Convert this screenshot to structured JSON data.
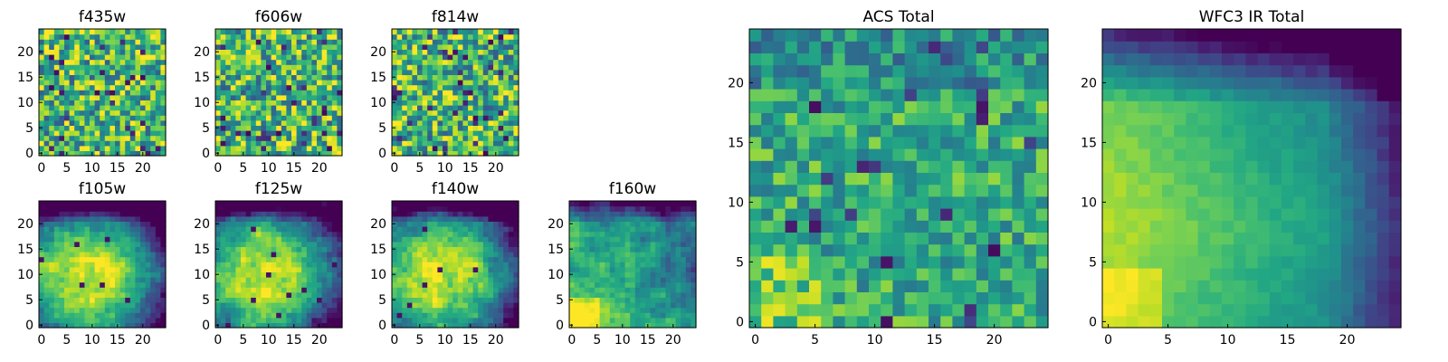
{
  "chart_data": [
    {
      "type": "heatmap",
      "title": "f435w",
      "colormap": "viridis",
      "grid_size": 25,
      "xticks": [
        "0",
        "5",
        "10",
        "15",
        "20"
      ],
      "yticks": [
        "0",
        "5",
        "10",
        "15",
        "20"
      ],
      "values_pattern": "noisy",
      "value_range": [
        0,
        1
      ]
    },
    {
      "type": "heatmap",
      "title": "f606w",
      "colormap": "viridis",
      "grid_size": 25,
      "xticks": [
        "0",
        "5",
        "10",
        "15",
        "20"
      ],
      "yticks": [
        "0",
        "5",
        "10",
        "15",
        "20"
      ],
      "values_pattern": "noisy",
      "value_range": [
        0,
        1
      ]
    },
    {
      "type": "heatmap",
      "title": "f814w",
      "colormap": "viridis",
      "grid_size": 25,
      "xticks": [
        "0",
        "5",
        "10",
        "15",
        "20"
      ],
      "yticks": [
        "0",
        "5",
        "10",
        "15",
        "20"
      ],
      "values_pattern": "noisy",
      "value_range": [
        0,
        1
      ]
    },
    {
      "type": "heatmap",
      "title": "f105w",
      "colormap": "viridis",
      "grid_size": 25,
      "xticks": [
        "0",
        "5",
        "10",
        "15",
        "20"
      ],
      "yticks": [
        "0",
        "5",
        "10",
        "15",
        "20"
      ],
      "values_pattern": "bright-center, dark top edge",
      "value_range": [
        0,
        1
      ]
    },
    {
      "type": "heatmap",
      "title": "f125w",
      "colormap": "viridis",
      "grid_size": 25,
      "xticks": [
        "0",
        "5",
        "10",
        "15",
        "20"
      ],
      "yticks": [
        "0",
        "5",
        "10",
        "15",
        "20"
      ],
      "values_pattern": "bright-center, dark top edge",
      "value_range": [
        0,
        1
      ]
    },
    {
      "type": "heatmap",
      "title": "f140w",
      "colormap": "viridis",
      "grid_size": 25,
      "xticks": [
        "0",
        "5",
        "10",
        "15",
        "20"
      ],
      "yticks": [
        "0",
        "5",
        "10",
        "15",
        "20"
      ],
      "values_pattern": "bright-center, dark top edge",
      "value_range": [
        0,
        1
      ]
    },
    {
      "type": "heatmap",
      "title": "f160w",
      "colormap": "viridis",
      "grid_size": 25,
      "xticks": [
        "0",
        "5",
        "10",
        "15",
        "20"
      ],
      "yticks": [
        "0",
        "5",
        "10",
        "15",
        "20"
      ],
      "values_pattern": "bright lower-left, dark top edge",
      "value_range": [
        0,
        1
      ]
    },
    {
      "type": "heatmap",
      "title": "ACS Total",
      "colormap": "viridis",
      "grid_size": 25,
      "xticks": [
        "0",
        "5",
        "10",
        "15",
        "20"
      ],
      "yticks": [
        "0",
        "5",
        "10",
        "15",
        "20"
      ],
      "values_pattern": "mostly green-yellow with scattered dark pixels",
      "value_range": [
        0,
        1
      ]
    },
    {
      "type": "heatmap",
      "title": "WFC3 IR Total",
      "colormap": "viridis",
      "grid_size": 25,
      "xticks": [
        "0",
        "5",
        "10",
        "15",
        "20"
      ],
      "yticks": [
        "0",
        "5",
        "10",
        "15",
        "20"
      ],
      "values_pattern": "smooth: bright lower-left/center, dark top rows",
      "value_range": [
        0,
        1
      ]
    }
  ]
}
